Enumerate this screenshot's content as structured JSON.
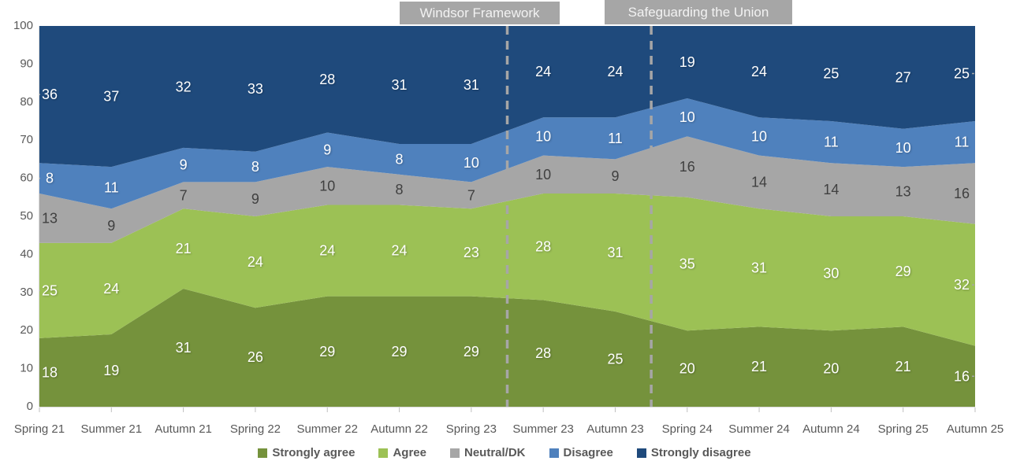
{
  "chart_data": {
    "type": "area",
    "stacked": true,
    "title": "",
    "xlabel": "",
    "ylabel": "",
    "ylim": [
      0,
      100
    ],
    "yticks": [
      0,
      10,
      20,
      30,
      40,
      50,
      60,
      70,
      80,
      90,
      100
    ],
    "grid": false,
    "legend_position": "bottom",
    "x": [
      "Spring 21",
      "Summer 21",
      "Autumn 21",
      "Spring 22",
      "Summer 22",
      "Autumn 22",
      "Spring 23",
      "Summer 23",
      "Autumn 23",
      "Spring 24",
      "Summer 24",
      "Autumn 24",
      "Spring 25",
      "Autumn 25"
    ],
    "series": [
      {
        "name": "Strongly agree",
        "color": "#75923c",
        "label_color": "#ffffff",
        "values": [
          18,
          19,
          31,
          26,
          29,
          29,
          29,
          28,
          25,
          20,
          21,
          20,
          21,
          16
        ]
      },
      {
        "name": "Agree",
        "color": "#9cc155",
        "label_color": "#ffffff",
        "values": [
          25,
          24,
          21,
          24,
          24,
          24,
          23,
          28,
          31,
          35,
          31,
          30,
          29,
          32
        ]
      },
      {
        "name": "Neutral/DK",
        "color": "#a6a6a6",
        "label_color": "#404040",
        "values": [
          13,
          9,
          7,
          9,
          10,
          8,
          7,
          10,
          9,
          16,
          14,
          14,
          13,
          16
        ]
      },
      {
        "name": "Disagree",
        "color": "#4f81bd",
        "label_color": "#ffffff",
        "values": [
          8,
          11,
          9,
          8,
          9,
          8,
          10,
          10,
          11,
          10,
          10,
          11,
          10,
          11
        ]
      },
      {
        "name": "Strongly disagree",
        "color": "#1f4a7c",
        "label_color": "#ffffff",
        "values": [
          36,
          37,
          32,
          33,
          28,
          31,
          31,
          24,
          24,
          19,
          24,
          25,
          27,
          25
        ]
      }
    ],
    "annotations": [
      {
        "label": "Windsor Framework",
        "between": [
          "Spring 23",
          "Summer 23"
        ]
      },
      {
        "label": "Safeguarding the Union",
        "between": [
          "Autumn 23",
          "Spring 24"
        ]
      }
    ]
  },
  "colors": {
    "axis_text": "#595959",
    "axis_line": "#d9d9d9",
    "tick_mark": "#bfbfbf",
    "dashed_line": "#a6a6a6",
    "leader_line": "#a6a6a6",
    "annotation_box": "#a6a6a6",
    "annotation_text": "#f2f2f2",
    "background": "#ffffff"
  }
}
